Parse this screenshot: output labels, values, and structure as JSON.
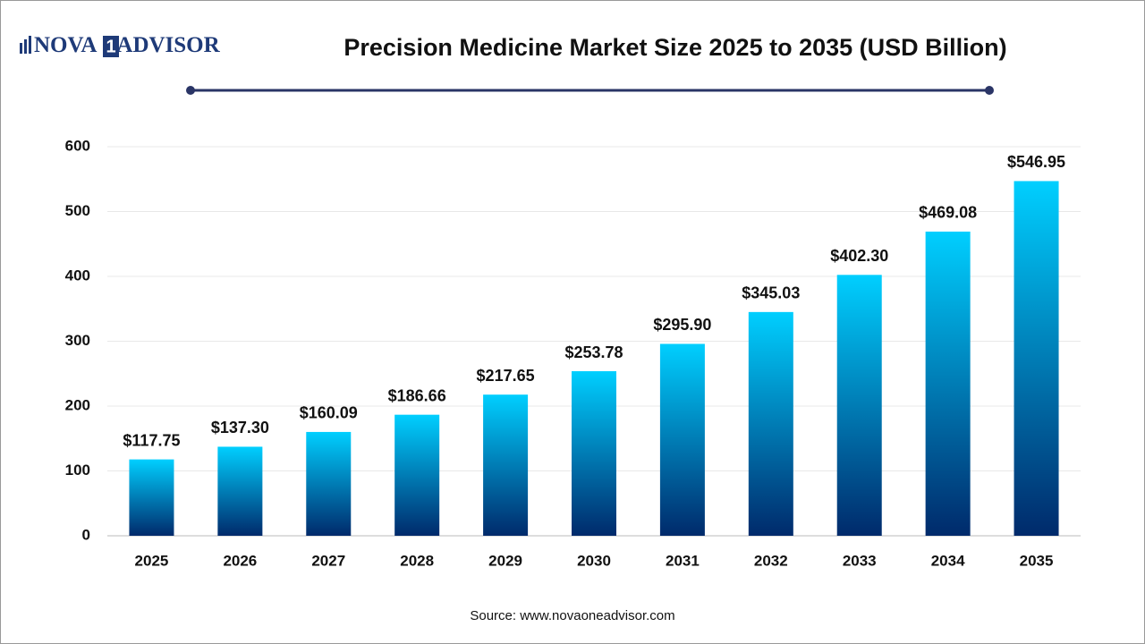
{
  "logo": {
    "left": "NOVA",
    "mark": "1",
    "right": "ADVISOR"
  },
  "chart_data": {
    "type": "bar",
    "title": "Precision Medicine Market Size 2025 to 2035 (USD Billion)",
    "categories": [
      "2025",
      "2026",
      "2027",
      "2028",
      "2029",
      "2030",
      "2031",
      "2032",
      "2033",
      "2034",
      "2035"
    ],
    "values": [
      117.75,
      137.3,
      160.09,
      186.66,
      217.65,
      253.78,
      295.9,
      345.03,
      402.3,
      469.08,
      546.95
    ],
    "value_labels": [
      "$117.75",
      "$137.30",
      "$160.09",
      "$186.66",
      "$217.65",
      "$253.78",
      "$295.90",
      "$345.03",
      "$402.30",
      "$469.08",
      "$546.95"
    ],
    "colors": [
      "#00cfff",
      "#002a6b"
    ],
    "ylim": [
      0,
      600
    ],
    "yticks": [
      0,
      100,
      200,
      300,
      400,
      500,
      600
    ],
    "grid": true,
    "source": "Source: www.novaoneadvisor.com"
  }
}
